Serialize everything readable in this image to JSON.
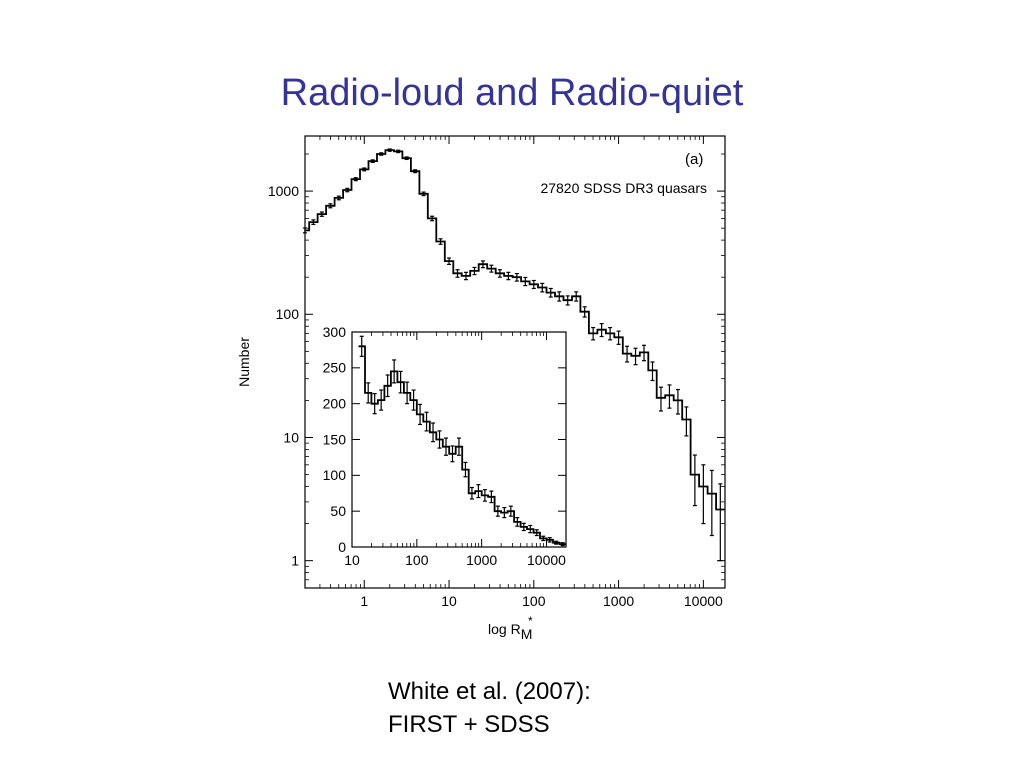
{
  "slide": {
    "title": "Radio-loud and Radio-quiet",
    "citation_line1": "White et al. (2007):",
    "citation_line2": "FIRST + SDSS",
    "title_color": "#333399"
  },
  "chart_data": [
    {
      "type": "line",
      "style": "histogram-step-with-error-bars",
      "panel_label": "(a)",
      "annotation": "27820 SDSS DR3 quasars",
      "xlabel": "log R",
      "xlabel_sub": "M",
      "xlabel_sup": "*",
      "ylabel": "Number",
      "x_scale": "log",
      "y_scale": "log",
      "xlim": [
        0.2,
        18000
      ],
      "ylim": [
        0.6,
        2800
      ],
      "xticks": [
        1,
        10,
        100,
        1000,
        10000
      ],
      "xtick_labels": [
        "1",
        "10",
        "100",
        "1000",
        "10000"
      ],
      "yticks": [
        1,
        10,
        100,
        1000
      ],
      "ytick_labels": [
        "1",
        "10",
        "100",
        "1000"
      ],
      "grid": false,
      "legend": "none",
      "x_log": [
        -0.7,
        -0.6,
        -0.5,
        -0.4,
        -0.3,
        -0.2,
        -0.1,
        0.0,
        0.1,
        0.2,
        0.3,
        0.4,
        0.5,
        0.6,
        0.7,
        0.8,
        0.9,
        1.0,
        1.1,
        1.2,
        1.3,
        1.4,
        1.5,
        1.6,
        1.7,
        1.8,
        1.9,
        2.0,
        2.1,
        2.2,
        2.3,
        2.4,
        2.5,
        2.6,
        2.7,
        2.8,
        2.9,
        3.0,
        3.1,
        3.2,
        3.3,
        3.4,
        3.5,
        3.6,
        3.7,
        3.8,
        3.9,
        4.0,
        4.1,
        4.2
      ],
      "values": [
        480,
        560,
        650,
        760,
        880,
        1020,
        1250,
        1500,
        1750,
        2000,
        2150,
        2100,
        1850,
        1450,
        950,
        600,
        390,
        270,
        215,
        205,
        225,
        255,
        235,
        215,
        205,
        200,
        185,
        175,
        165,
        150,
        140,
        130,
        140,
        105,
        70,
        75,
        70,
        65,
        48,
        46,
        49,
        35,
        21,
        22,
        20,
        14,
        5,
        4,
        3.5,
        2.6
      ],
      "errors": [
        22,
        24,
        26,
        28,
        30,
        32,
        35,
        39,
        42,
        45,
        46,
        46,
        43,
        38,
        31,
        25,
        20,
        16,
        15,
        14,
        15,
        16,
        15,
        15,
        14,
        14,
        14,
        13,
        13,
        12,
        12,
        11,
        12,
        10,
        8,
        9,
        8,
        8,
        7,
        7,
        7,
        6,
        4.6,
        4.7,
        4.5,
        3.7,
        2.2,
        2.0,
        1.9,
        1.6
      ]
    },
    {
      "type": "line",
      "style": "histogram-step-with-error-bars",
      "inset": true,
      "x_scale": "log",
      "y_scale": "linear",
      "xlim": [
        10,
        20000
      ],
      "ylim": [
        0,
        300
      ],
      "xticks": [
        10,
        100,
        1000,
        10000
      ],
      "xtick_labels": [
        "10",
        "100",
        "1000",
        "10000"
      ],
      "yticks": [
        0,
        50,
        100,
        150,
        200,
        250,
        300
      ],
      "ytick_labels": [
        "0",
        "50",
        "100",
        "150",
        "200",
        "250",
        "300"
      ],
      "grid": false,
      "legend": "none",
      "x_log": [
        1.15,
        1.25,
        1.35,
        1.45,
        1.55,
        1.65,
        1.75,
        1.85,
        1.95,
        2.05,
        2.15,
        2.25,
        2.35,
        2.45,
        2.55,
        2.65,
        2.75,
        2.85,
        2.95,
        3.05,
        3.15,
        3.25,
        3.35,
        3.45,
        3.55,
        3.65,
        3.75,
        3.85,
        3.95,
        4.05,
        4.15,
        4.25
      ],
      "values": [
        280,
        215,
        200,
        205,
        225,
        245,
        230,
        215,
        205,
        185,
        175,
        160,
        150,
        140,
        130,
        140,
        108,
        75,
        78,
        72,
        70,
        50,
        48,
        50,
        35,
        28,
        25,
        20,
        12,
        10,
        6,
        4
      ],
      "errors": [
        14,
        14,
        14,
        14,
        15,
        16,
        15,
        15,
        14,
        14,
        13,
        13,
        12,
        12,
        11,
        12,
        10,
        8,
        9,
        8,
        8,
        7,
        7,
        7,
        6,
        5,
        5,
        4,
        3,
        3,
        2,
        2
      ]
    }
  ]
}
